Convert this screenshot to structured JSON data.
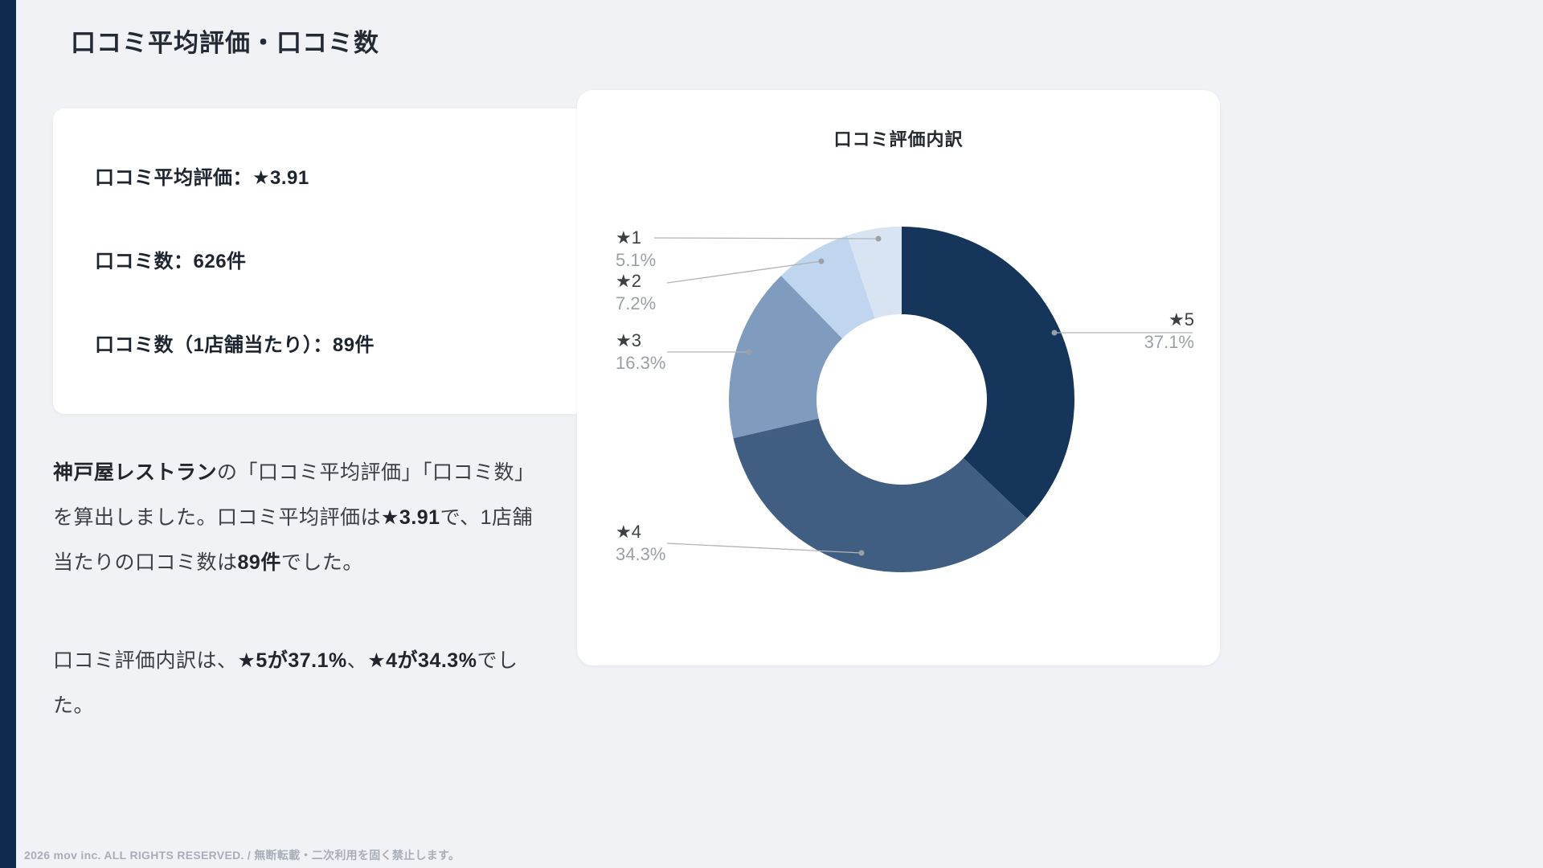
{
  "page": {
    "title": "口コミ平均評価・口コミ数",
    "footer": "2026 mov inc. ALL RIGHTS RESERVED. / 無断転載・二次利用を固く禁止します。"
  },
  "stats_card": {
    "lines": [
      "口コミ平均評価：★3.91",
      "口コミ数：626件",
      "口コミ数（1店舗当たり）：89件"
    ]
  },
  "paragraphs": [
    {
      "segments": [
        {
          "text": "神戸屋レストラン",
          "bold": true
        },
        {
          "text": "の「口コミ平均評価」「口コミ数」を算出しました。口コミ平均評価は",
          "bold": false
        },
        {
          "text": "★3.91",
          "bold": true
        },
        {
          "text": "で、1店舗当たりの口コミ数は",
          "bold": false
        },
        {
          "text": "89件",
          "bold": true
        },
        {
          "text": "でした。",
          "bold": false
        }
      ]
    },
    {
      "segments": [
        {
          "text": "口コミ評価内訳は、",
          "bold": false
        },
        {
          "text": "★5が37.1%",
          "bold": true
        },
        {
          "text": "、",
          "bold": false
        },
        {
          "text": "★4が34.3%",
          "bold": true
        },
        {
          "text": "でした。",
          "bold": false
        }
      ]
    }
  ],
  "chart_data": {
    "type": "pie",
    "subtype": "donut",
    "title": "口コミ評価内訳",
    "categories": [
      "★5",
      "★4",
      "★3",
      "★2",
      "★1"
    ],
    "values": [
      37.1,
      34.3,
      16.3,
      7.2,
      5.1
    ],
    "percent_labels": [
      "37.1%",
      "34.3%",
      "16.3%",
      "7.2%",
      "5.1%"
    ],
    "colors": [
      "#15365a",
      "#3f5e82",
      "#7f9bbe",
      "#c0d6ef",
      "#d9e4f2"
    ],
    "unit": "%",
    "start_angle_deg": 0,
    "direction": "clockwise",
    "legend_position": "none",
    "label_style": "leader-lines"
  }
}
